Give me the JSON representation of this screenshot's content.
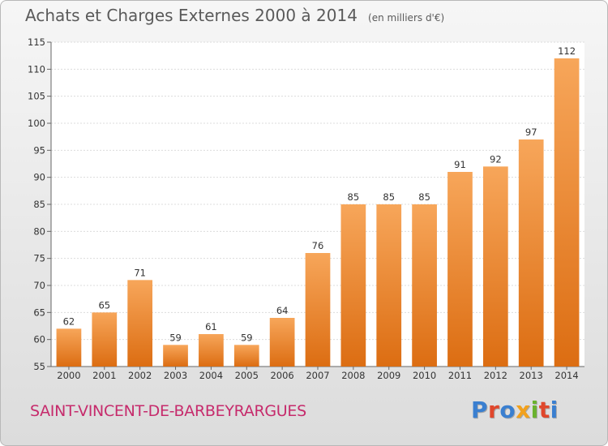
{
  "chart_data": {
    "type": "bar",
    "title": "Achats et Charges Externes 2000 à 2014",
    "subtitle": "(en milliers d'€)",
    "categories": [
      "2000",
      "2001",
      "2002",
      "2003",
      "2004",
      "2005",
      "2006",
      "2007",
      "2008",
      "2009",
      "2010",
      "2011",
      "2012",
      "2013",
      "2014"
    ],
    "values": [
      62,
      65,
      71,
      59,
      61,
      59,
      64,
      76,
      85,
      85,
      85,
      91,
      92,
      97,
      112
    ],
    "ylim": [
      55,
      115
    ],
    "yticks": [
      55,
      60,
      65,
      70,
      75,
      80,
      85,
      90,
      95,
      100,
      105,
      110,
      115
    ],
    "grid": true,
    "bar_color": "#f08a2c"
  },
  "footer": {
    "commune": "SAINT-VINCENT-DE-BARBEYRARGUES",
    "brand": "Proxiti",
    "brand_colors": [
      "#3a7fd0",
      "#e0472c",
      "#3a7fd0",
      "#f2a11d",
      "#6ab22e",
      "#e0472c",
      "#3a7fd0"
    ]
  }
}
